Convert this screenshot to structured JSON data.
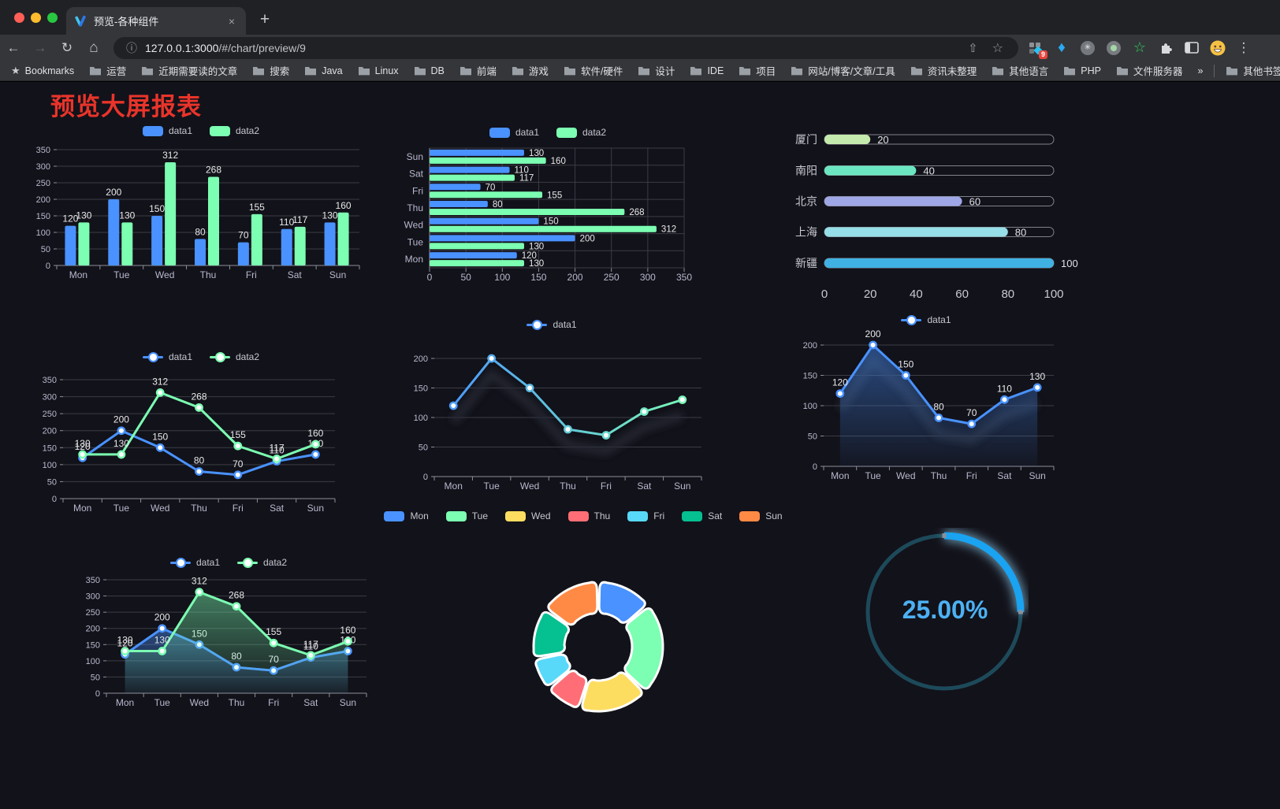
{
  "browser": {
    "tab_title": "预览-各种组件",
    "close_glyph": "×",
    "new_tab_glyph": "+",
    "back_glyph": "←",
    "forward_glyph": "→",
    "reload_glyph": "↻",
    "home_glyph": "⌂",
    "info_glyph": "ⓘ",
    "share_glyph": "⇧",
    "star_glyph": "☆",
    "menu_glyph": "⋮",
    "url_host": "127.0.0.1:3000",
    "url_path": "/#/chart/preview/9",
    "bookmarks_root": "Bookmarks",
    "bookmarks": [
      "运营",
      "近期需要读的文章",
      "搜索",
      "Java",
      "Linux",
      "DB",
      "前端",
      "游戏",
      "软件/硬件",
      "设计",
      "IDE",
      "项目",
      "网站/博客/文章/工具",
      "资讯未整理",
      "其他语言",
      "PHP",
      "文件服务器"
    ],
    "overflow_glyph": "»",
    "other_bookmarks": "其他书签",
    "extension_badge": "9"
  },
  "page": {
    "title": "预览大屏报表"
  },
  "theme": {
    "bg": "#12121a",
    "grid_line": "#3c3c46",
    "axis_line": "#8f8f9b",
    "tick_label": "#b9b8ce",
    "value_label": "#e8e8ea"
  },
  "chart_data": [
    {
      "id": "bar-grouped",
      "type": "bar",
      "categories": [
        "Mon",
        "Tue",
        "Wed",
        "Thu",
        "Fri",
        "Sat",
        "Sun"
      ],
      "series": [
        {
          "name": "data1",
          "color": "#4992ff",
          "values": [
            120,
            200,
            150,
            80,
            70,
            110,
            130
          ]
        },
        {
          "name": "data2",
          "color": "#7cffb2",
          "values": [
            130,
            130,
            312,
            268,
            155,
            117,
            160
          ]
        }
      ],
      "ylim": [
        0,
        350
      ],
      "ytick": 50,
      "legend_position": "top",
      "point_labels": true
    },
    {
      "id": "bar-horizontal",
      "type": "bar-horizontal",
      "categories": [
        "Mon",
        "Tue",
        "Wed",
        "Thu",
        "Fri",
        "Sat",
        "Sun"
      ],
      "series": [
        {
          "name": "data1",
          "color": "#4992ff",
          "values": [
            120,
            200,
            150,
            80,
            70,
            110,
            130
          ]
        },
        {
          "name": "data2",
          "color": "#7cffb2",
          "values": [
            130,
            130,
            312,
            268,
            155,
            117,
            160
          ]
        }
      ],
      "xlim": [
        0,
        350
      ],
      "xtick": 50,
      "legend_position": "top",
      "point_labels": true
    },
    {
      "id": "capsule",
      "type": "capsule",
      "categories": [
        "厦门",
        "南阳",
        "北京",
        "上海",
        "新疆"
      ],
      "values": [
        20,
        40,
        60,
        80,
        100
      ],
      "colors": [
        "#c4ebad",
        "#6be6c1",
        "#a0a7e6",
        "#96dee8",
        "#3fb1e3"
      ],
      "xlim": [
        0,
        100
      ],
      "xticks": [
        0,
        20,
        40,
        60,
        80,
        100
      ]
    },
    {
      "id": "line-two",
      "type": "line",
      "categories": [
        "Mon",
        "Tue",
        "Wed",
        "Thu",
        "Fri",
        "Sat",
        "Sun"
      ],
      "series": [
        {
          "name": "data1",
          "color": "#4992ff",
          "values": [
            120,
            200,
            150,
            80,
            70,
            110,
            130
          ]
        },
        {
          "name": "data2",
          "color": "#7cffb2",
          "values": [
            130,
            130,
            312,
            268,
            155,
            117,
            160
          ]
        }
      ],
      "ylim": [
        0,
        350
      ],
      "ytick": 50,
      "point_labels": true
    },
    {
      "id": "line-gradient",
      "type": "line",
      "categories": [
        "Mon",
        "Tue",
        "Wed",
        "Thu",
        "Fri",
        "Sat",
        "Sun"
      ],
      "series": [
        {
          "name": "data1",
          "color": "#4992ff",
          "gradient": [
            "#4992ff",
            "#7cffb2"
          ],
          "values": [
            120,
            200,
            150,
            80,
            70,
            110,
            130
          ]
        }
      ],
      "ylim": [
        0,
        200
      ],
      "ytick": 50,
      "point_labels": false,
      "shadow": true
    },
    {
      "id": "area-single",
      "type": "line",
      "categories": [
        "Mon",
        "Tue",
        "Wed",
        "Thu",
        "Fri",
        "Sat",
        "Sun"
      ],
      "series": [
        {
          "name": "data1",
          "color": "#4992ff",
          "area": true,
          "values": [
            120,
            200,
            150,
            80,
            70,
            110,
            130
          ]
        }
      ],
      "ylim": [
        0,
        200
      ],
      "ytick": 50,
      "point_labels": true,
      "shadow": true
    },
    {
      "id": "area-two",
      "type": "line",
      "categories": [
        "Mon",
        "Tue",
        "Wed",
        "Thu",
        "Fri",
        "Sat",
        "Sun"
      ],
      "series": [
        {
          "name": "data1",
          "color": "#4992ff",
          "area": true,
          "values": [
            120,
            200,
            150,
            80,
            70,
            110,
            130
          ]
        },
        {
          "name": "data2",
          "color": "#7cffb2",
          "area": true,
          "values": [
            130,
            130,
            312,
            268,
            155,
            117,
            160
          ]
        }
      ],
      "ylim": [
        0,
        350
      ],
      "ytick": 50,
      "point_labels": true
    },
    {
      "id": "pie-donut",
      "type": "pie",
      "categories": [
        "Mon",
        "Tue",
        "Wed",
        "Thu",
        "Fri",
        "Sat",
        "Sun"
      ],
      "values": [
        120,
        200,
        150,
        80,
        70,
        110,
        130
      ],
      "colors": [
        "#4992ff",
        "#7cffb2",
        "#fddd60",
        "#ff6e76",
        "#58d9f9",
        "#05c091",
        "#ff8a45"
      ]
    },
    {
      "id": "gauge-ring",
      "type": "gauge",
      "value": 25,
      "max": 100,
      "label": "25.00%",
      "color": "#19a3f1",
      "track_color": "#1d4a5a",
      "text_color": "#4cb1f3"
    }
  ]
}
